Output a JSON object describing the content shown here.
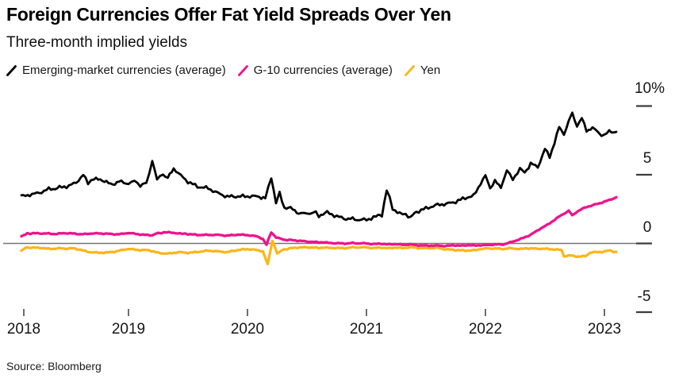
{
  "header": {
    "title": "Foreign Currencies Offer Fat Yield Spreads Over Yen",
    "subtitle": "Three-month implied yields"
  },
  "footer": {
    "source": "Source: Bloomberg"
  },
  "colors": {
    "em_black": "#000000",
    "g10_magenta": "#f0128c",
    "yen_yellow": "#fdb515",
    "zero_line_gray": "#767676",
    "tick_gray": "#3d3d3d"
  },
  "chart_data": {
    "type": "line",
    "title": "Foreign Currencies Offer Fat Yield Spreads Over Yen",
    "subtitle": "Three-month implied yields",
    "unit": "%",
    "grid": false,
    "zero_line": true,
    "legend_position": "top",
    "x_range": [
      2018.1,
      2023.1
    ],
    "ylim": [
      -5.5,
      10
    ],
    "x_ticks": [
      2018,
      2019,
      2020,
      2021,
      2022,
      2023
    ],
    "x_tick_labels": [
      "2018",
      "2019",
      "2020",
      "2021",
      "2022",
      "2023"
    ],
    "y_ticks": [
      10,
      5,
      0,
      -5
    ],
    "y_tick_labels": [
      "10%",
      "5",
      "0",
      "-5"
    ],
    "series": [
      {
        "name": "Emerging-market currencies (average)",
        "color": "#000000",
        "stroke_width": 2.8,
        "texture": 0.11,
        "points": [
          [
            2018.1,
            3.45
          ],
          [
            2018.17,
            3.6
          ],
          [
            2018.25,
            3.75
          ],
          [
            2018.33,
            4.0
          ],
          [
            2018.42,
            4.1
          ],
          [
            2018.5,
            4.25
          ],
          [
            2018.56,
            4.5
          ],
          [
            2018.62,
            5.0
          ],
          [
            2018.66,
            4.4
          ],
          [
            2018.71,
            4.7
          ],
          [
            2018.78,
            4.55
          ],
          [
            2018.85,
            4.35
          ],
          [
            2018.92,
            4.5
          ],
          [
            2019.0,
            4.4
          ],
          [
            2019.05,
            4.5
          ],
          [
            2019.1,
            4.3
          ],
          [
            2019.15,
            4.35
          ],
          [
            2019.2,
            6.05
          ],
          [
            2019.24,
            4.6
          ],
          [
            2019.29,
            5.1
          ],
          [
            2019.33,
            4.8
          ],
          [
            2019.38,
            5.4
          ],
          [
            2019.44,
            4.9
          ],
          [
            2019.5,
            4.5
          ],
          [
            2019.58,
            4.2
          ],
          [
            2019.67,
            3.95
          ],
          [
            2019.75,
            3.65
          ],
          [
            2019.83,
            3.45
          ],
          [
            2019.92,
            3.35
          ],
          [
            2020.0,
            3.4
          ],
          [
            2020.08,
            3.45
          ],
          [
            2020.15,
            3.2
          ],
          [
            2020.2,
            4.9
          ],
          [
            2020.24,
            3.0
          ],
          [
            2020.27,
            3.6
          ],
          [
            2020.31,
            2.6
          ],
          [
            2020.38,
            2.45
          ],
          [
            2020.45,
            2.2
          ],
          [
            2020.5,
            2.15
          ],
          [
            2020.55,
            2.3
          ],
          [
            2020.6,
            2.0
          ],
          [
            2020.67,
            2.2
          ],
          [
            2020.75,
            1.9
          ],
          [
            2020.83,
            1.75
          ],
          [
            2020.92,
            1.7
          ],
          [
            2021.0,
            1.65
          ],
          [
            2021.08,
            1.9
          ],
          [
            2021.13,
            2.1
          ],
          [
            2021.17,
            3.85
          ],
          [
            2021.22,
            2.6
          ],
          [
            2021.28,
            2.2
          ],
          [
            2021.33,
            2.1
          ],
          [
            2021.37,
            1.8
          ],
          [
            2021.42,
            2.3
          ],
          [
            2021.5,
            2.5
          ],
          [
            2021.58,
            2.7
          ],
          [
            2021.67,
            2.9
          ],
          [
            2021.75,
            3.0
          ],
          [
            2021.83,
            3.25
          ],
          [
            2021.9,
            3.5
          ],
          [
            2021.96,
            4.4
          ],
          [
            2022.0,
            4.9
          ],
          [
            2022.04,
            4.0
          ],
          [
            2022.08,
            4.5
          ],
          [
            2022.13,
            4.1
          ],
          [
            2022.18,
            5.3
          ],
          [
            2022.23,
            4.7
          ],
          [
            2022.29,
            5.4
          ],
          [
            2022.33,
            5.1
          ],
          [
            2022.38,
            5.9
          ],
          [
            2022.44,
            5.6
          ],
          [
            2022.5,
            6.9
          ],
          [
            2022.54,
            6.3
          ],
          [
            2022.58,
            7.3
          ],
          [
            2022.62,
            8.4
          ],
          [
            2022.66,
            7.9
          ],
          [
            2022.7,
            8.8
          ],
          [
            2022.73,
            9.5
          ],
          [
            2022.77,
            8.6
          ],
          [
            2022.81,
            9.1
          ],
          [
            2022.85,
            8.2
          ],
          [
            2022.9,
            8.5
          ],
          [
            2022.95,
            8.0
          ],
          [
            2023.0,
            7.9
          ],
          [
            2023.04,
            8.2
          ],
          [
            2023.1,
            8.1
          ]
        ]
      },
      {
        "name": "G-10 currencies (average)",
        "color": "#f0128c",
        "stroke_width": 3.3,
        "texture": 0.035,
        "points": [
          [
            2018.1,
            0.5
          ],
          [
            2018.15,
            0.75
          ],
          [
            2018.2,
            0.72
          ],
          [
            2018.27,
            0.75
          ],
          [
            2018.33,
            0.73
          ],
          [
            2018.4,
            0.7
          ],
          [
            2018.47,
            0.73
          ],
          [
            2018.53,
            0.7
          ],
          [
            2018.6,
            0.68
          ],
          [
            2018.67,
            0.72
          ],
          [
            2018.75,
            0.75
          ],
          [
            2018.83,
            0.72
          ],
          [
            2018.92,
            0.66
          ],
          [
            2019.0,
            0.78
          ],
          [
            2019.06,
            0.72
          ],
          [
            2019.12,
            0.65
          ],
          [
            2019.2,
            0.6
          ],
          [
            2019.25,
            0.75
          ],
          [
            2019.3,
            0.8
          ],
          [
            2019.38,
            0.75
          ],
          [
            2019.45,
            0.7
          ],
          [
            2019.5,
            0.68
          ],
          [
            2019.58,
            0.64
          ],
          [
            2019.67,
            0.6
          ],
          [
            2019.75,
            0.62
          ],
          [
            2019.83,
            0.58
          ],
          [
            2019.92,
            0.62
          ],
          [
            2020.0,
            0.6
          ],
          [
            2020.08,
            0.52
          ],
          [
            2020.13,
            0.3
          ],
          [
            2020.16,
            -0.08
          ],
          [
            2020.2,
            0.85
          ],
          [
            2020.24,
            0.45
          ],
          [
            2020.3,
            0.3
          ],
          [
            2020.4,
            0.2
          ],
          [
            2020.5,
            0.12
          ],
          [
            2020.6,
            0.08
          ],
          [
            2020.7,
            0.05
          ],
          [
            2020.8,
            0.02
          ],
          [
            2020.92,
            0.0
          ],
          [
            2021.0,
            -0.02
          ],
          [
            2021.2,
            -0.05
          ],
          [
            2021.4,
            -0.1
          ],
          [
            2021.6,
            -0.18
          ],
          [
            2021.75,
            -0.15
          ],
          [
            2021.9,
            -0.14
          ],
          [
            2022.0,
            -0.12
          ],
          [
            2022.08,
            -0.1
          ],
          [
            2022.15,
            -0.05
          ],
          [
            2022.22,
            0.1
          ],
          [
            2022.3,
            0.35
          ],
          [
            2022.38,
            0.65
          ],
          [
            2022.45,
            1.0
          ],
          [
            2022.52,
            1.35
          ],
          [
            2022.58,
            1.7
          ],
          [
            2022.64,
            2.05
          ],
          [
            2022.7,
            2.35
          ],
          [
            2022.73,
            2.05
          ],
          [
            2022.78,
            2.35
          ],
          [
            2022.85,
            2.65
          ],
          [
            2022.92,
            2.85
          ],
          [
            2023.0,
            3.05
          ],
          [
            2023.1,
            3.35
          ]
        ]
      },
      {
        "name": "Yen",
        "color": "#fdb515",
        "stroke_width": 3.2,
        "texture": 0.04,
        "points": [
          [
            2018.1,
            -0.55
          ],
          [
            2018.14,
            -0.3
          ],
          [
            2018.2,
            -0.33
          ],
          [
            2018.27,
            -0.3
          ],
          [
            2018.33,
            -0.38
          ],
          [
            2018.4,
            -0.35
          ],
          [
            2018.47,
            -0.4
          ],
          [
            2018.53,
            -0.38
          ],
          [
            2018.6,
            -0.45
          ],
          [
            2018.67,
            -0.62
          ],
          [
            2018.75,
            -0.66
          ],
          [
            2018.83,
            -0.63
          ],
          [
            2018.9,
            -0.58
          ],
          [
            2018.96,
            -0.45
          ],
          [
            2019.0,
            -0.38
          ],
          [
            2019.08,
            -0.45
          ],
          [
            2019.17,
            -0.5
          ],
          [
            2019.25,
            -0.68
          ],
          [
            2019.33,
            -0.72
          ],
          [
            2019.42,
            -0.65
          ],
          [
            2019.5,
            -0.68
          ],
          [
            2019.58,
            -0.6
          ],
          [
            2019.67,
            -0.55
          ],
          [
            2019.75,
            -0.58
          ],
          [
            2019.83,
            -0.62
          ],
          [
            2019.92,
            -0.5
          ],
          [
            2020.0,
            -0.42
          ],
          [
            2020.08,
            -0.48
          ],
          [
            2020.13,
            -0.6
          ],
          [
            2020.17,
            -1.55
          ],
          [
            2020.21,
            0.2
          ],
          [
            2020.25,
            -0.75
          ],
          [
            2020.3,
            -0.42
          ],
          [
            2020.4,
            -0.33
          ],
          [
            2020.5,
            -0.3
          ],
          [
            2020.6,
            -0.33
          ],
          [
            2020.7,
            -0.3
          ],
          [
            2020.8,
            -0.32
          ],
          [
            2020.92,
            -0.3
          ],
          [
            2021.0,
            -0.31
          ],
          [
            2021.2,
            -0.33
          ],
          [
            2021.4,
            -0.3
          ],
          [
            2021.6,
            -0.35
          ],
          [
            2021.75,
            -0.5
          ],
          [
            2021.85,
            -0.55
          ],
          [
            2021.95,
            -0.42
          ],
          [
            2022.0,
            -0.36
          ],
          [
            2022.1,
            -0.4
          ],
          [
            2022.2,
            -0.36
          ],
          [
            2022.3,
            -0.4
          ],
          [
            2022.4,
            -0.35
          ],
          [
            2022.5,
            -0.38
          ],
          [
            2022.58,
            -0.45
          ],
          [
            2022.64,
            -0.5
          ],
          [
            2022.66,
            -0.95
          ],
          [
            2022.72,
            -0.9
          ],
          [
            2022.78,
            -0.97
          ],
          [
            2022.84,
            -0.92
          ],
          [
            2022.88,
            -0.65
          ],
          [
            2022.94,
            -0.6
          ],
          [
            2023.0,
            -0.58
          ],
          [
            2023.05,
            -0.52
          ],
          [
            2023.1,
            -0.62
          ]
        ]
      }
    ]
  }
}
